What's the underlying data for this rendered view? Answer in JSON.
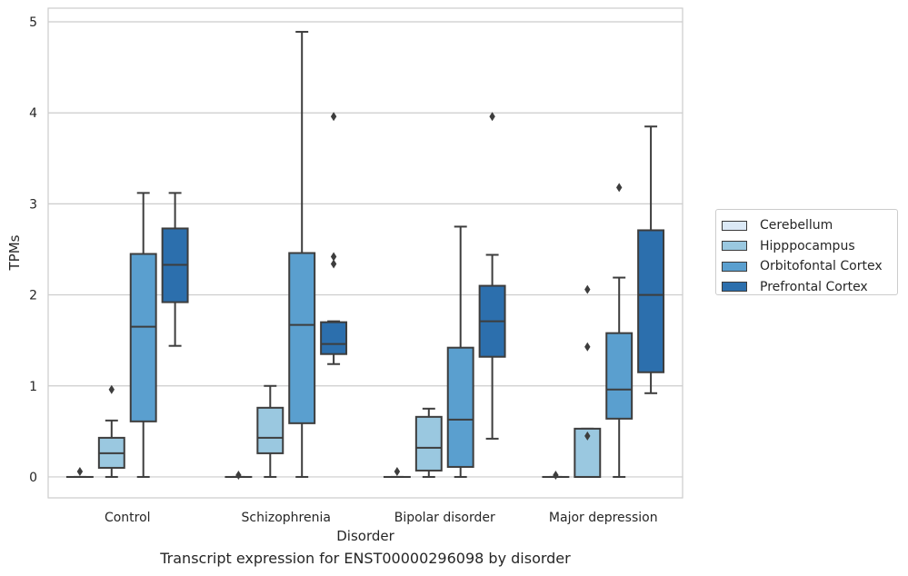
{
  "caption": "Transcript expression for ENST00000296098 by disorder",
  "chart_data": {
    "type": "box",
    "xlabel": "Disorder",
    "ylabel": "TPMs",
    "ylim": [
      -0.23,
      5.15
    ],
    "yticks": [
      0,
      1,
      2,
      3,
      4,
      5
    ],
    "grid": "horizontal",
    "legend_placement": "right",
    "categories": [
      "Control",
      "Schizophrenia",
      "Bipolar disorder",
      "Major depression"
    ],
    "series": [
      {
        "name": "Cerebellum",
        "color": "#dbe9f6",
        "boxes": [
          {
            "whislo": 0,
            "q1": 0,
            "med": 0,
            "q3": 0,
            "whishi": 0,
            "fliers": [
              0.06
            ]
          },
          {
            "whislo": 0,
            "q1": 0,
            "med": 0,
            "q3": 0,
            "whishi": 0,
            "fliers": [
              0.02
            ]
          },
          {
            "whislo": 0,
            "q1": 0,
            "med": 0,
            "q3": 0,
            "whishi": 0,
            "fliers": [
              0.06
            ]
          },
          {
            "whislo": 0,
            "q1": 0,
            "med": 0,
            "q3": 0,
            "whishi": 0,
            "fliers": [
              0.02
            ]
          }
        ]
      },
      {
        "name": "Hipppocampus",
        "color": "#9ac8e0",
        "boxes": [
          {
            "whislo": 0,
            "q1": 0.1,
            "med": 0.26,
            "q3": 0.43,
            "whishi": 0.62,
            "fliers": [
              0.96
            ]
          },
          {
            "whislo": 0,
            "q1": 0.26,
            "med": 0.43,
            "q3": 0.76,
            "whishi": 1.0,
            "fliers": []
          },
          {
            "whislo": 0,
            "q1": 0.07,
            "med": 0.32,
            "q3": 0.66,
            "whishi": 0.75,
            "fliers": []
          },
          {
            "whislo": 0,
            "q1": 0,
            "med": 0,
            "q3": 0.53,
            "whishi": 0.53,
            "fliers": [
              0.45,
              1.43,
              2.06
            ]
          }
        ]
      },
      {
        "name": "Orbitofontal Cortex",
        "color": "#5a9fcf",
        "boxes": [
          {
            "whislo": 0,
            "q1": 0.61,
            "med": 1.65,
            "q3": 2.45,
            "whishi": 3.12,
            "fliers": []
          },
          {
            "whislo": 0,
            "q1": 0.59,
            "med": 1.67,
            "q3": 2.46,
            "whishi": 4.89,
            "fliers": []
          },
          {
            "whislo": 0,
            "q1": 0.11,
            "med": 0.63,
            "q3": 1.42,
            "whishi": 2.75,
            "fliers": []
          },
          {
            "whislo": 0,
            "q1": 0.64,
            "med": 0.96,
            "q3": 1.58,
            "whishi": 2.19,
            "fliers": [
              3.18
            ]
          }
        ]
      },
      {
        "name": "Prefrontal Cortex",
        "color": "#2c6fad",
        "boxes": [
          {
            "whislo": 1.44,
            "q1": 1.92,
            "med": 2.33,
            "q3": 2.73,
            "whishi": 3.12,
            "fliers": []
          },
          {
            "whislo": 1.24,
            "q1": 1.35,
            "med": 1.46,
            "q3": 1.7,
            "whishi": 1.71,
            "fliers": [
              2.34,
              2.42,
              3.96
            ]
          },
          {
            "whislo": 0.42,
            "q1": 1.32,
            "med": 1.71,
            "q3": 2.1,
            "whishi": 2.44,
            "fliers": [
              3.96
            ]
          },
          {
            "whislo": 0.92,
            "q1": 1.15,
            "med": 2.0,
            "q3": 2.71,
            "whishi": 3.85,
            "fliers": []
          }
        ]
      }
    ]
  }
}
